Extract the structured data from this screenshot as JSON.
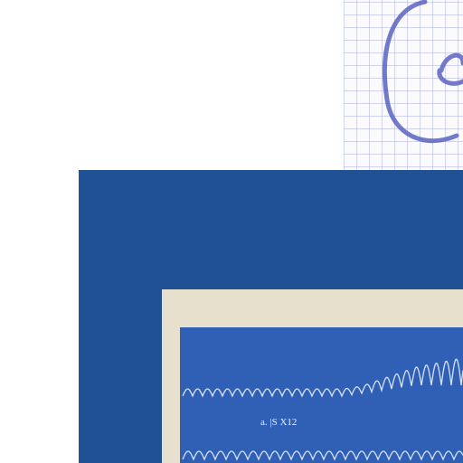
{
  "print": {
    "label": "a. |S X12"
  }
}
